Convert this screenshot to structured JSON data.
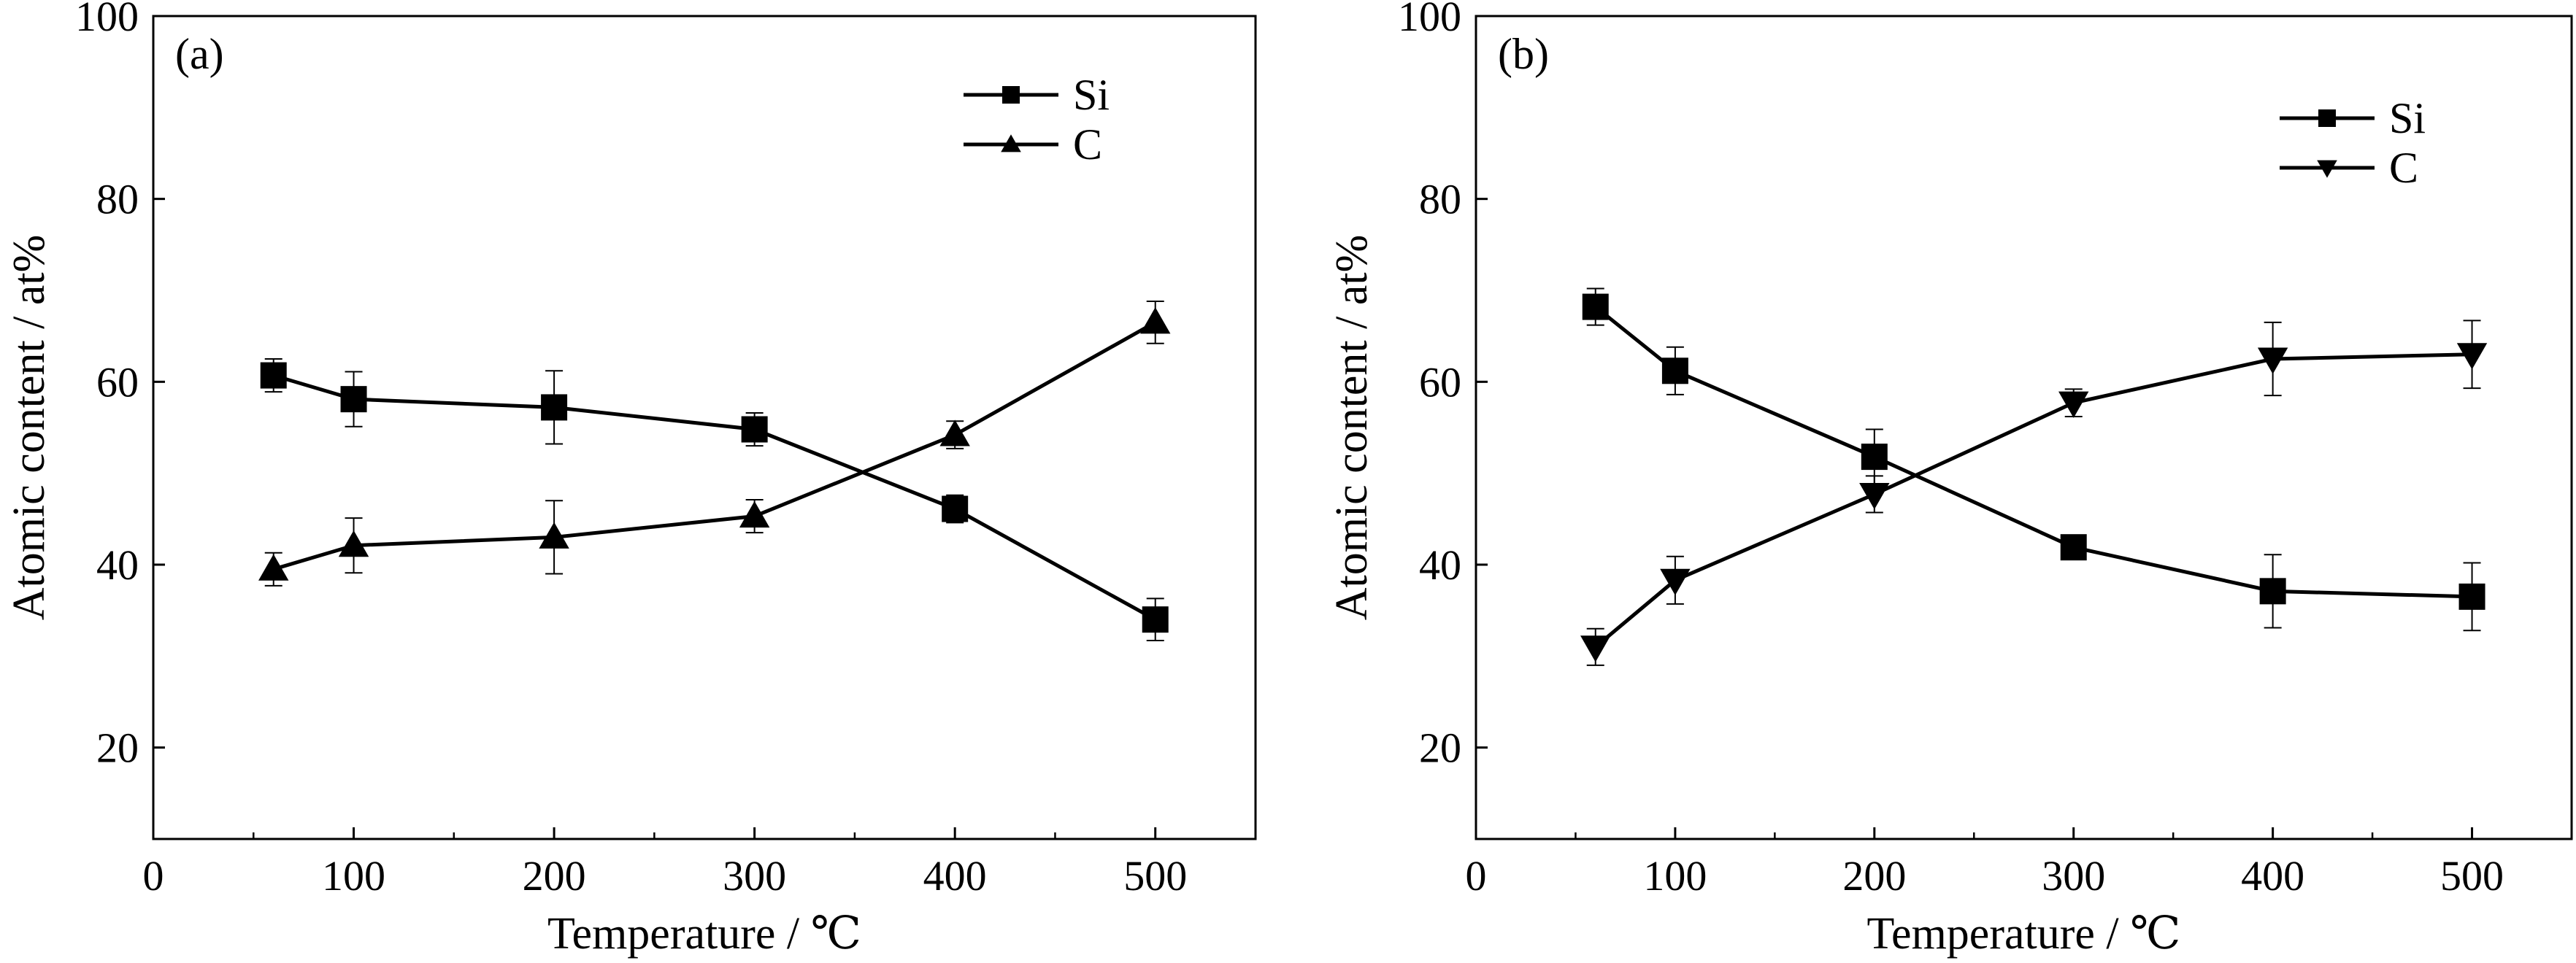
{
  "chart_data": [
    {
      "type": "line",
      "panel_label": "(a)",
      "xlabel": "Temperature / ℃",
      "ylabel": "Atomic content / at%",
      "xlim": [
        0,
        550
      ],
      "ylim": [
        10,
        100
      ],
      "xticks": [
        0,
        100,
        200,
        300,
        400,
        500
      ],
      "yticks": [
        20,
        40,
        60,
        80,
        100
      ],
      "grid": false,
      "legend_position": "top-right",
      "series": [
        {
          "name": "Si",
          "marker": "square",
          "color": "#000000",
          "x": [
            60,
            100,
            200,
            300,
            400,
            500
          ],
          "y": [
            60.7,
            58.1,
            57.2,
            54.8,
            46.1,
            34.0
          ],
          "err": [
            1.8,
            3.0,
            4.0,
            1.8,
            1.5,
            2.3
          ]
        },
        {
          "name": "C",
          "marker": "triangle-up",
          "color": "#000000",
          "x": [
            60,
            100,
            200,
            300,
            400,
            500
          ],
          "y": [
            39.5,
            42.1,
            43.0,
            45.3,
            54.2,
            66.5
          ],
          "err": [
            1.8,
            3.0,
            4.0,
            1.8,
            1.5,
            2.3
          ]
        }
      ]
    },
    {
      "type": "line",
      "panel_label": "(b)",
      "xlabel": "Temperature / ℃",
      "ylabel": "Atomic content / at%",
      "xlim": [
        0,
        550
      ],
      "ylim": [
        10,
        100
      ],
      "xticks": [
        0,
        100,
        200,
        300,
        400,
        500
      ],
      "yticks": [
        20,
        40,
        60,
        80,
        100
      ],
      "grid": false,
      "legend_position": "top-right",
      "series": [
        {
          "name": "Si",
          "marker": "square",
          "color": "#000000",
          "x": [
            60,
            100,
            200,
            300,
            400,
            500
          ],
          "y": [
            68.2,
            61.2,
            51.8,
            41.9,
            37.1,
            36.5
          ],
          "err": [
            2.0,
            2.6,
            3.0,
            1.0,
            4.0,
            3.7
          ]
        },
        {
          "name": "C",
          "marker": "triangle-down",
          "color": "#000000",
          "x": [
            60,
            100,
            200,
            300,
            400,
            500
          ],
          "y": [
            31.0,
            38.3,
            47.7,
            57.7,
            62.5,
            63.0
          ],
          "err": [
            2.0,
            2.6,
            2.0,
            1.5,
            4.0,
            3.7
          ]
        }
      ]
    }
  ]
}
